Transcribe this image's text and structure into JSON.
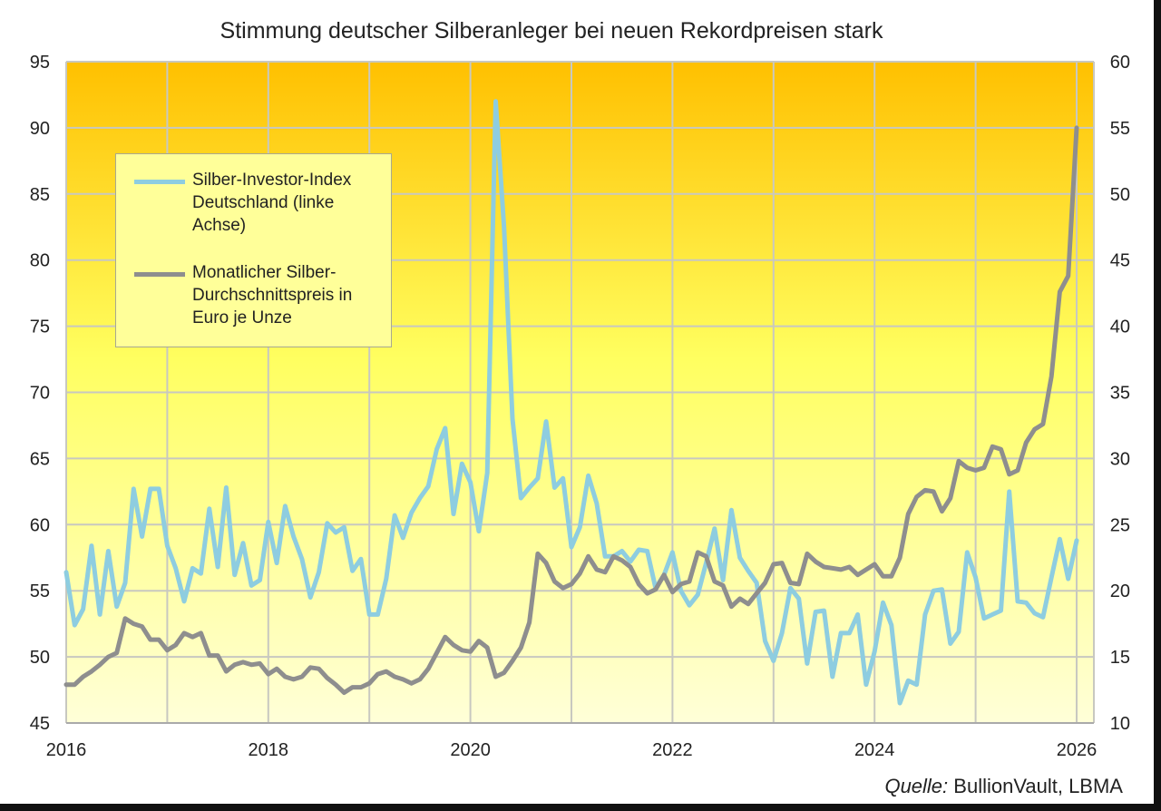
{
  "chart_data": {
    "type": "line",
    "title": "Stimmung deutscher Silberanleger bei neuen Rekordpreisen stark",
    "source_label": "Quelle:",
    "source_text": "BullionVault, LBMA",
    "x_start": "2016-01",
    "x_frequency": "monthly",
    "x_range": [
      2016,
      2026
    ],
    "x_ticks": [
      "2016",
      "2018",
      "2020",
      "2022",
      "2024",
      "2026"
    ],
    "y_left": {
      "range": [
        45,
        95
      ],
      "ticks": [
        "45",
        "50",
        "55",
        "60",
        "65",
        "70",
        "75",
        "80",
        "85",
        "90",
        "95"
      ]
    },
    "y_right": {
      "range": [
        10,
        60
      ],
      "ticks": [
        "10",
        "15",
        "20",
        "25",
        "30",
        "35",
        "40",
        "45",
        "50",
        "55",
        "60"
      ]
    },
    "grid": true,
    "legend_position": "top-left",
    "colors": {
      "index": "#8ECDE0",
      "price": "#8E8E8E",
      "bg_top": "#FFC000",
      "bg_mid": "#FFFF66",
      "bg_bottom": "#FFFFD8"
    },
    "series": [
      {
        "name": "Silber-Investor-Index Deutschland (linke Achse)",
        "axis": "left",
        "values": [
          56.4,
          52.4,
          53.6,
          58.4,
          53.2,
          58.0,
          53.8,
          55.6,
          62.7,
          59.1,
          62.7,
          62.7,
          58.4,
          56.7,
          54.2,
          56.7,
          56.3,
          61.2,
          56.8,
          62.8,
          56.2,
          58.6,
          55.4,
          55.8,
          60.2,
          57.1,
          61.4,
          59.1,
          57.4,
          54.5,
          56.4,
          60.1,
          59.4,
          59.8,
          56.5,
          57.4,
          53.2,
          53.2,
          55.9,
          60.7,
          59.0,
          60.9,
          62.0,
          62.9,
          65.7,
          67.3,
          60.8,
          64.6,
          63.2,
          59.5,
          63.9,
          92.0,
          82.5,
          68.0,
          62.0,
          62.8,
          63.5,
          67.8,
          62.8,
          63.5,
          58.3,
          59.8,
          63.7,
          61.6,
          57.6,
          57.6,
          58.0,
          57.2,
          58.1,
          58.0,
          55.2,
          56.2,
          57.9,
          55.0,
          53.9,
          54.7,
          57.1,
          59.7,
          55.8,
          61.1,
          57.5,
          56.5,
          55.6,
          51.2,
          49.7,
          51.8,
          55.2,
          54.4,
          49.5,
          53.4,
          53.5,
          48.5,
          51.8,
          51.8,
          53.2,
          47.9,
          50.4,
          54.1,
          52.4,
          46.5,
          48.2,
          47.9,
          53.2,
          55.0,
          55.1,
          51.0,
          51.9,
          57.9,
          56.0,
          52.9,
          53.2,
          53.5,
          62.5,
          54.2,
          54.1,
          53.3,
          53.0,
          56.0,
          58.9,
          55.9,
          58.8
        ]
      },
      {
        "name": "Monatlicher Silber-Durchschnittspreis in Euro je Unze",
        "axis": "right",
        "values": [
          12.9,
          12.9,
          13.5,
          13.9,
          14.4,
          15.0,
          15.3,
          17.9,
          17.5,
          17.3,
          16.3,
          16.3,
          15.5,
          15.9,
          16.8,
          16.5,
          16.8,
          15.1,
          15.1,
          13.9,
          14.4,
          14.6,
          14.4,
          14.5,
          13.7,
          14.1,
          13.5,
          13.3,
          13.5,
          14.2,
          14.1,
          13.4,
          12.9,
          12.3,
          12.7,
          12.7,
          13.0,
          13.7,
          13.9,
          13.5,
          13.3,
          13.0,
          13.3,
          14.1,
          15.3,
          16.5,
          15.9,
          15.5,
          15.4,
          16.2,
          15.7,
          13.5,
          13.8,
          14.7,
          15.7,
          17.6,
          22.8,
          22.1,
          20.7,
          20.2,
          20.5,
          21.3,
          22.6,
          21.6,
          21.4,
          22.6,
          22.3,
          21.8,
          20.5,
          19.8,
          20.1,
          21.2,
          19.9,
          20.5,
          20.7,
          22.9,
          22.6,
          20.7,
          20.4,
          18.8,
          19.4,
          19.0,
          19.8,
          20.6,
          22.0,
          22.1,
          20.6,
          20.5,
          22.8,
          22.2,
          21.8,
          21.7,
          21.6,
          21.8,
          21.2,
          21.6,
          22.0,
          21.1,
          21.1,
          22.5,
          25.8,
          27.1,
          27.6,
          27.5,
          26.0,
          27.0,
          29.8,
          29.3,
          29.1,
          29.3,
          30.9,
          30.7,
          28.8,
          29.1,
          31.2,
          32.2,
          32.6,
          36.2,
          42.6,
          43.8,
          55.0
        ]
      }
    ],
    "legend": [
      {
        "lines": [
          "Silber-Investor-Index",
          "Deutschland (linke",
          "Achse)"
        ]
      },
      {
        "lines": [
          "Monatlicher Silber-",
          "Durchschnittspreis in",
          "Euro je Unze"
        ]
      }
    ]
  }
}
